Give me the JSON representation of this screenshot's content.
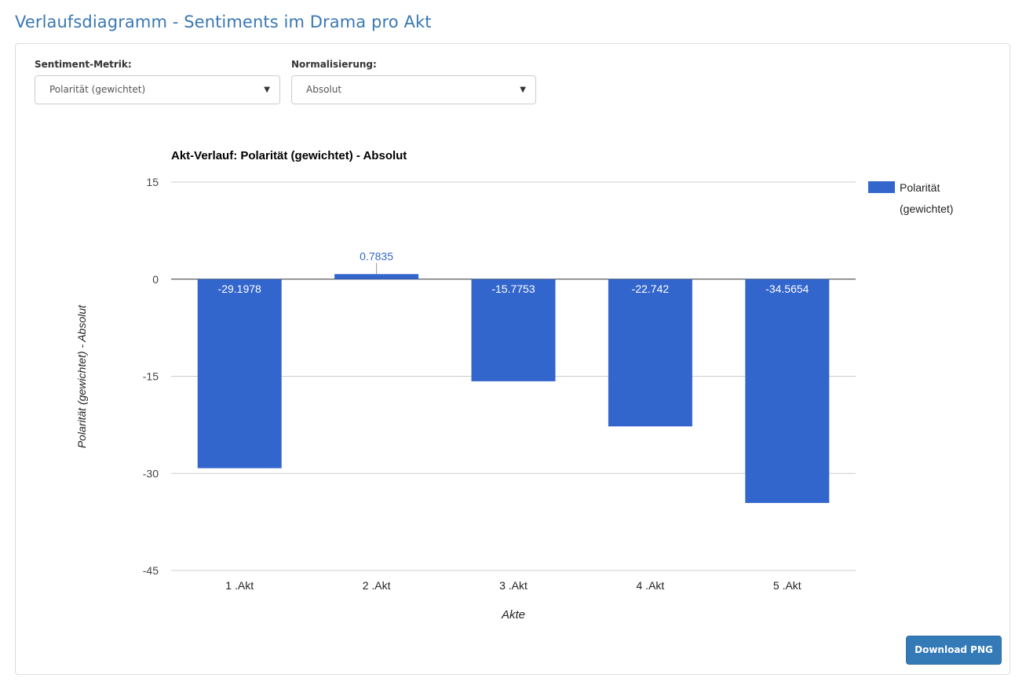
{
  "page": {
    "title": "Verlaufsdiagramm - Sentiments im Drama pro Akt"
  },
  "controls": {
    "metric_label": "Sentiment-Metrik:",
    "metric_value": "Polarität (gewichtet)",
    "normalization_label": "Normalisierung:",
    "normalization_value": "Absolut",
    "caret_icon": "▼"
  },
  "download": {
    "label": "Download PNG"
  },
  "colors": {
    "title": "#3a78b3",
    "bar": "#3366cc",
    "button": "#337ab7",
    "gridline": "#cccccc"
  },
  "chart_data": {
    "type": "bar",
    "title": "Akt-Verlauf: Polarität (gewichtet) - Absolut",
    "xlabel": "Akte",
    "ylabel": "Polarität (gewichtet) - Absolut",
    "categories": [
      "1 .Akt",
      "2 .Akt",
      "3 .Akt",
      "4 .Akt",
      "5 .Akt"
    ],
    "series": [
      {
        "name": "Polarität (gewichtet)",
        "values": [
          -29.1978,
          0.7835,
          -15.7753,
          -22.742,
          -34.5654
        ],
        "labels": [
          "-29.1978",
          "0.7835",
          "-15.7753",
          "-22.742",
          "-34.5654"
        ]
      }
    ],
    "ylim": [
      -45,
      15
    ],
    "yticks": [
      15,
      0,
      -15,
      -30,
      -45
    ],
    "ytick_labels": [
      "15",
      "0",
      "-15",
      "-30",
      "-45"
    ],
    "grid": true,
    "legend": "right"
  }
}
